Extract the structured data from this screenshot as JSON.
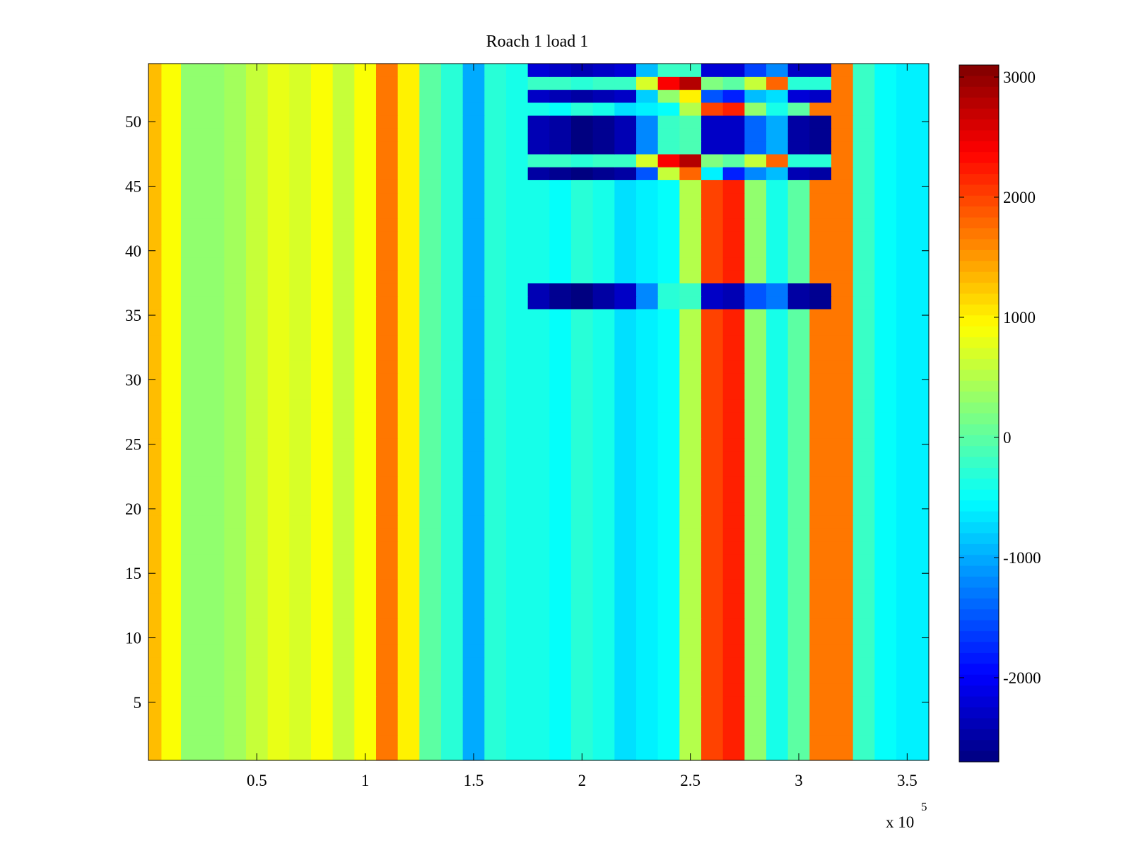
{
  "chart_data": {
    "type": "heatmap",
    "title": "Roach 1 load 1",
    "xlabel": "",
    "ylabel": "",
    "x_exponent_label": {
      "base": "x 10",
      "power": "5"
    },
    "xlim": [
      0,
      3.6
    ],
    "ylim": [
      0.5,
      54.5
    ],
    "x_ticks": [
      {
        "value": 0.5,
        "label": "0.5"
      },
      {
        "value": 1,
        "label": "1"
      },
      {
        "value": 1.5,
        "label": "1.5"
      },
      {
        "value": 2,
        "label": "2"
      },
      {
        "value": 2.5,
        "label": "2.5"
      },
      {
        "value": 3,
        "label": "3"
      },
      {
        "value": 3.5,
        "label": "3.5"
      }
    ],
    "y_ticks": [
      {
        "value": 5,
        "label": "5"
      },
      {
        "value": 10,
        "label": "10"
      },
      {
        "value": 15,
        "label": "15"
      },
      {
        "value": 20,
        "label": "20"
      },
      {
        "value": 25,
        "label": "25"
      },
      {
        "value": 30,
        "label": "30"
      },
      {
        "value": 35,
        "label": "35"
      },
      {
        "value": 40,
        "label": "40"
      },
      {
        "value": 45,
        "label": "45"
      },
      {
        "value": 50,
        "label": "50"
      }
    ],
    "colorbar": {
      "colormap": "jet",
      "clim": [
        -2700,
        3100
      ],
      "ticks": [
        {
          "value": 3000,
          "label": "3000"
        },
        {
          "value": 2000,
          "label": "2000"
        },
        {
          "value": 1000,
          "label": "1000"
        },
        {
          "value": 0,
          "label": "0"
        },
        {
          "value": -1000,
          "label": "-1000"
        },
        {
          "value": -2000,
          "label": "-2000"
        }
      ]
    },
    "columns_x": [
      0.02,
      0.1,
      0.2,
      0.3,
      0.4,
      0.5,
      0.6,
      0.7,
      0.8,
      0.9,
      1.0,
      1.1,
      1.2,
      1.3,
      1.4,
      1.5,
      1.6,
      1.7,
      1.8,
      1.9,
      2.0,
      2.1,
      2.2,
      2.3,
      2.4,
      2.5,
      2.6,
      2.7,
      2.8,
      2.9,
      3.0,
      3.1,
      3.2,
      3.3,
      3.4,
      3.5
    ],
    "column_profile_values": [
      1300,
      900,
      300,
      300,
      400,
      600,
      800,
      700,
      900,
      600,
      900,
      1700,
      1000,
      0,
      -300,
      -1000,
      -300,
      -400,
      -400,
      -500,
      -300,
      -400,
      -700,
      -600,
      -500,
      500,
      2000,
      2200,
      300,
      -400,
      0,
      1700,
      1700,
      -200,
      -500,
      -600
    ],
    "band_rows": [
      {
        "rows": [
          36,
          37
        ],
        "columns_from_x": 1.8,
        "values": [
          -2400,
          -2600,
          -2700,
          -2500,
          -2300,
          -1200,
          -300,
          -200,
          -2300,
          -2400,
          -1500,
          -1300,
          -2500,
          -2600
        ]
      },
      {
        "rows": [
          46
        ],
        "columns_from_x": 1.8,
        "values": [
          -2500,
          -2600,
          -2700,
          -2600,
          -2500,
          -1500,
          600,
          1800,
          -600,
          -1800,
          -1200,
          -900,
          -2400,
          -2500
        ]
      },
      {
        "rows": [
          48,
          49,
          50
        ],
        "columns_from_x": 1.8,
        "values": [
          -2400,
          -2500,
          -2700,
          -2600,
          -2400,
          -1200,
          -200,
          -100,
          -2300,
          -2300,
          -1400,
          -1000,
          -2500,
          -2600
        ]
      },
      {
        "rows": [
          52
        ],
        "columns_from_x": 1.8,
        "values": [
          -2300,
          -2400,
          -2500,
          -2400,
          -2300,
          -800,
          300,
          1000,
          -1500,
          -1800,
          -900,
          -700,
          -2200,
          -2300
        ]
      },
      {
        "rows": [
          47,
          53
        ],
        "columns_from_x": 1.8,
        "values": [
          -200,
          -200,
          -300,
          -200,
          -200,
          700,
          2400,
          2800,
          200,
          0,
          600,
          1800,
          -300,
          -300
        ]
      },
      {
        "rows": [
          54
        ],
        "columns_from_x": 1.8,
        "values": [
          -2200,
          -2300,
          -2400,
          -2300,
          -2200,
          -900,
          -200,
          -200,
          -2200,
          -2200,
          -1600,
          -1200,
          -2300,
          -2300
        ]
      }
    ]
  }
}
